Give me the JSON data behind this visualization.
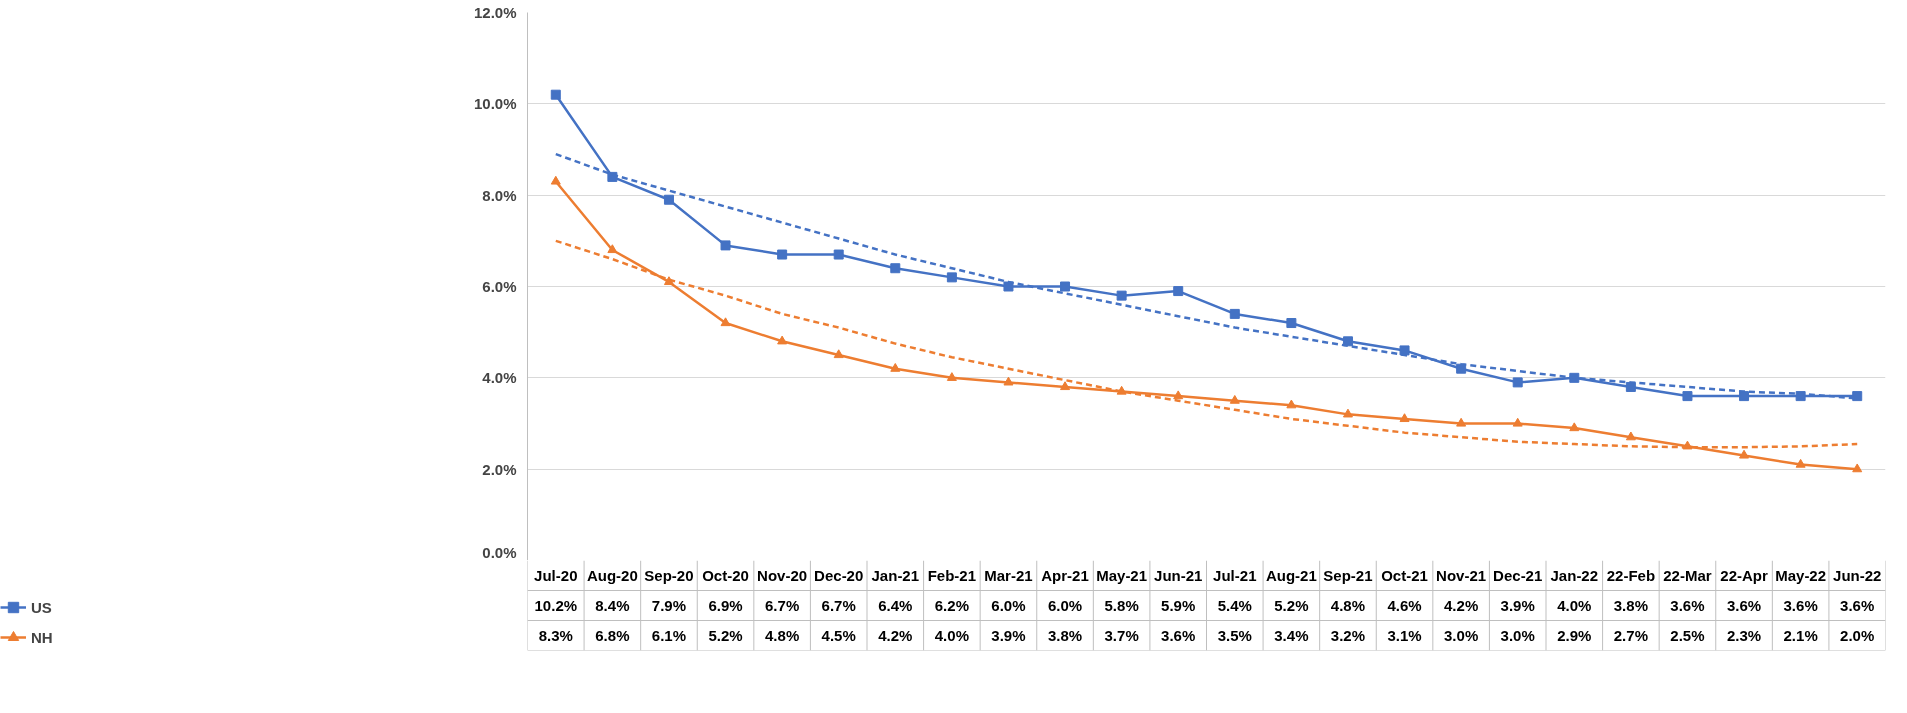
{
  "chart_data": {
    "type": "line",
    "categories": [
      "Jul-20",
      "Aug-20",
      "Sep-20",
      "Oct-20",
      "Nov-20",
      "Dec-20",
      "Jan-21",
      "Feb-21",
      "Mar-21",
      "Apr-21",
      "May-21",
      "Jun-21",
      "Jul-21",
      "Aug-21",
      "Sep-21",
      "Oct-21",
      "Nov-21",
      "Dec-21",
      "Jan-22",
      "22-Feb",
      "22-Mar",
      "22-Apr",
      "May-22",
      "Jun-22"
    ],
    "series": [
      {
        "name": "US",
        "color": "#4472c4",
        "marker": "square",
        "line_style": "solid",
        "values": [
          10.2,
          8.4,
          7.9,
          6.9,
          6.7,
          6.7,
          6.4,
          6.2,
          6.0,
          6.0,
          5.8,
          5.9,
          5.4,
          5.2,
          4.8,
          4.6,
          4.2,
          3.9,
          4.0,
          3.8,
          3.6,
          3.6,
          3.6,
          3.6
        ],
        "value_labels": [
          "10.2%",
          "8.4%",
          "7.9%",
          "6.9%",
          "6.7%",
          "6.7%",
          "6.4%",
          "6.2%",
          "6.0%",
          "6.0%",
          "5.8%",
          "5.9%",
          "5.4%",
          "5.2%",
          "4.8%",
          "4.6%",
          "4.2%",
          "3.9%",
          "4.0%",
          "3.8%",
          "3.6%",
          "3.6%",
          "3.6%",
          "3.6%"
        ]
      },
      {
        "name": "NH",
        "color": "#ed7d31",
        "marker": "triangle",
        "line_style": "solid",
        "values": [
          8.3,
          6.8,
          6.1,
          5.2,
          4.8,
          4.5,
          4.2,
          4.0,
          3.9,
          3.8,
          3.7,
          3.6,
          3.5,
          3.4,
          3.2,
          3.1,
          3.0,
          3.0,
          2.9,
          2.7,
          2.5,
          2.3,
          2.1,
          2.0
        ],
        "value_labels": [
          "8.3%",
          "6.8%",
          "6.1%",
          "5.2%",
          "4.8%",
          "4.5%",
          "4.2%",
          "4.0%",
          "3.9%",
          "3.8%",
          "3.7%",
          "3.6%",
          "3.5%",
          "3.4%",
          "3.2%",
          "3.1%",
          "3.0%",
          "3.0%",
          "2.9%",
          "2.7%",
          "2.5%",
          "2.3%",
          "2.1%",
          "2.0%"
        ]
      },
      {
        "color": "#4472c4",
        "marker": "none",
        "line_style": "dashed",
        "values": [
          8.9,
          8.45,
          8.1,
          7.75,
          7.4,
          7.05,
          6.7,
          6.4,
          6.1,
          5.85,
          5.6,
          5.35,
          5.1,
          4.9,
          4.7,
          4.5,
          4.3,
          4.15,
          4.0,
          3.9,
          3.8,
          3.7,
          3.65,
          3.55
        ]
      },
      {
        "color": "#ed7d31",
        "marker": "none",
        "line_style": "dashed",
        "values": [
          7.0,
          6.6,
          6.15,
          5.8,
          5.4,
          5.1,
          4.75,
          4.45,
          4.2,
          3.95,
          3.7,
          3.5,
          3.3,
          3.1,
          2.95,
          2.8,
          2.7,
          2.6,
          2.55,
          2.5,
          2.48,
          2.48,
          2.5,
          2.55
        ]
      }
    ],
    "ylim": [
      0,
      12
    ],
    "yticks": [
      {
        "value": 0,
        "label": "0.0%"
      },
      {
        "value": 2,
        "label": "2.0%"
      },
      {
        "value": 4,
        "label": "4.0%"
      },
      {
        "value": 6,
        "label": "6.0%"
      },
      {
        "value": 8,
        "label": "8.0%"
      },
      {
        "value": 10,
        "label": "10.0%"
      },
      {
        "value": 12,
        "label": "12.0%"
      }
    ],
    "grid": "y",
    "legend": "bottom"
  }
}
